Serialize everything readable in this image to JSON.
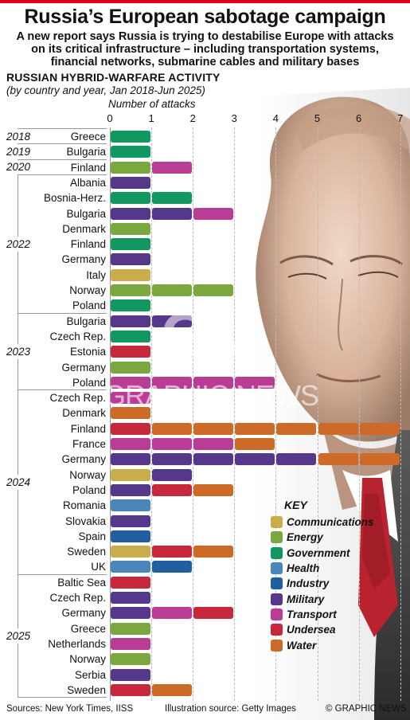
{
  "header": {
    "title": "Russia’s European sabotage campaign",
    "subtitle": "A new report says Russia is trying to destabilise Europe with attacks on its critical infrastructure – including transportation systems, financial networks, submarine cables and military bases"
  },
  "section": {
    "heading": "RUSSIAN HYBRID-WARFARE ACTIVITY",
    "subheading": "(by country and year, Jan 2018-Jun 2025)"
  },
  "colors": {
    "Communications": "#c8ad48",
    "Energy": "#7aa73e",
    "Government": "#119760",
    "Health": "#4a86b9",
    "Industry": "#215fa0",
    "Military": "#55378c",
    "Transport": "#b93d94",
    "Undersea": "#c8283c",
    "Water": "#cd6a28",
    "accent": "#e10019"
  },
  "key": {
    "title": "KEY",
    "items": [
      "Communications",
      "Energy",
      "Government",
      "Health",
      "Industry",
      "Military",
      "Transport",
      "Undersea",
      "Water"
    ]
  },
  "footer": {
    "sources": "Sources: New York Times, IISS",
    "illustration": "Illustration source: Getty Images",
    "copyright": "© GRAPHIC NEWS"
  },
  "watermark": {
    "logo": "GN",
    "text": "GRAPHIC NEWS"
  },
  "chart_data": {
    "type": "bar",
    "stacked": true,
    "orientation": "horizontal",
    "xlabel": "Number of attacks",
    "xlim": [
      0,
      7
    ],
    "xticks": [
      "0",
      "1",
      "2",
      "3",
      "4",
      "5",
      "6",
      "7"
    ],
    "grid": true,
    "legend_position": "bottom-right",
    "groups": [
      {
        "year": "2018",
        "rows": [
          {
            "country": "Greece",
            "attacks": [
              "Government"
            ]
          }
        ]
      },
      {
        "year": "2019",
        "rows": [
          {
            "country": "Bulgaria",
            "attacks": [
              "Government"
            ]
          }
        ]
      },
      {
        "year": "2020",
        "rows": [
          {
            "country": "Finland",
            "attacks": [
              "Energy",
              "Transport"
            ]
          }
        ]
      },
      {
        "year": "2022",
        "rows": [
          {
            "country": "Albania",
            "attacks": [
              "Military"
            ]
          },
          {
            "country": "Bosnia-Herz.",
            "attacks": [
              "Government",
              "Government"
            ]
          },
          {
            "country": "Bulgaria",
            "attacks": [
              "Military",
              "Military",
              "Transport"
            ]
          },
          {
            "country": "Denmark",
            "attacks": [
              "Energy"
            ]
          },
          {
            "country": "Finland",
            "attacks": [
              "Government"
            ]
          },
          {
            "country": "Germany",
            "attacks": [
              "Military"
            ]
          },
          {
            "country": "Italy",
            "attacks": [
              "Communications"
            ]
          },
          {
            "country": "Norway",
            "attacks": [
              "Energy",
              "Energy",
              "Energy"
            ]
          },
          {
            "country": "Poland",
            "attacks": [
              "Government"
            ]
          }
        ]
      },
      {
        "year": "2023",
        "rows": [
          {
            "country": "Bulgaria",
            "attacks": [
              "Military",
              "Military"
            ]
          },
          {
            "country": "Czech Rep.",
            "attacks": [
              "Government"
            ]
          },
          {
            "country": "Estonia",
            "attacks": [
              "Undersea"
            ]
          },
          {
            "country": "Germany",
            "attacks": [
              "Energy"
            ]
          },
          {
            "country": "Poland",
            "attacks": [
              "Transport",
              "Transport",
              "Transport",
              "Transport"
            ]
          }
        ]
      },
      {
        "year": "2024",
        "rows": [
          {
            "country": "Czech Rep.",
            "attacks": [
              "Transport"
            ]
          },
          {
            "country": "Denmark",
            "attacks": [
              "Water"
            ]
          },
          {
            "country": "Finland",
            "attacks": [
              "Undersea",
              "Water",
              "Water",
              "Water",
              "Water",
              "Water",
              "Water"
            ]
          },
          {
            "country": "France",
            "attacks": [
              "Transport",
              "Transport",
              "Transport",
              "Water"
            ]
          },
          {
            "country": "Germany",
            "attacks": [
              "Military",
              "Military",
              "Military",
              "Military",
              "Military",
              "Water",
              "Water"
            ]
          },
          {
            "country": "Norway",
            "attacks": [
              "Communications",
              "Military"
            ]
          },
          {
            "country": "Poland",
            "attacks": [
              "Military",
              "Undersea",
              "Water"
            ]
          },
          {
            "country": "Romania",
            "attacks": [
              "Health"
            ]
          },
          {
            "country": "Slovakia",
            "attacks": [
              "Military"
            ]
          },
          {
            "country": "Spain",
            "attacks": [
              "Industry"
            ]
          },
          {
            "country": "Sweden",
            "attacks": [
              "Communications",
              "Undersea",
              "Water"
            ]
          },
          {
            "country": "UK",
            "attacks": [
              "Health",
              "Industry"
            ]
          }
        ]
      },
      {
        "year": "2025",
        "rows": [
          {
            "country": "Baltic Sea",
            "attacks": [
              "Undersea"
            ]
          },
          {
            "country": "Czech Rep.",
            "attacks": [
              "Military"
            ]
          },
          {
            "country": "Germany",
            "attacks": [
              "Military",
              "Transport",
              "Undersea"
            ]
          },
          {
            "country": "Greece",
            "attacks": [
              "Energy"
            ]
          },
          {
            "country": "Netherlands",
            "attacks": [
              "Transport"
            ]
          },
          {
            "country": "Norway",
            "attacks": [
              "Energy"
            ]
          },
          {
            "country": "Serbia",
            "attacks": [
              "Military"
            ]
          },
          {
            "country": "Sweden",
            "attacks": [
              "Undersea",
              "Water"
            ]
          }
        ]
      }
    ]
  }
}
